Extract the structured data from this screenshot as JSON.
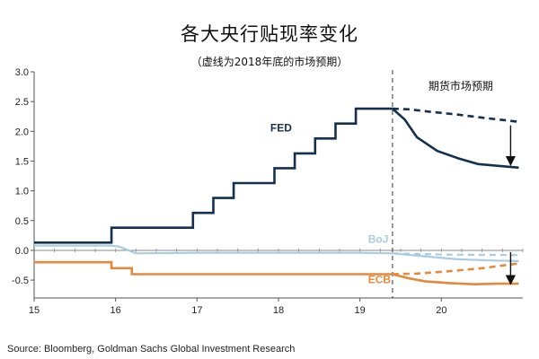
{
  "title": "各大央行贴现率变化",
  "subtitle": "（虚线为2018年底的市场预期）",
  "source": "Source: Bloomberg, Goldman Sachs Global Investment Research",
  "chart_data": {
    "type": "line",
    "xlabel": "",
    "ylabel": "",
    "xlim": [
      15,
      21
    ],
    "ylim": [
      -0.8,
      3.0
    ],
    "yticks": [
      -0.5,
      0.0,
      0.5,
      1.0,
      1.5,
      2.0,
      2.5,
      3.0
    ],
    "ytick_labels": [
      "-0.5",
      "0.0",
      "0.5",
      "1.0",
      "1.5",
      "2.0",
      "2.5",
      "3.0"
    ],
    "xticks": [
      15,
      16,
      17,
      18,
      19,
      20
    ],
    "xtick_labels": [
      "15",
      "16",
      "17",
      "18",
      "19",
      "20"
    ],
    "divider_x": 19.4,
    "divider_label": "期货市场预期",
    "series": [
      {
        "name": "FED",
        "color": "#14304f",
        "style": "step",
        "values": [
          [
            15.0,
            0.13
          ],
          [
            15.95,
            0.13
          ],
          [
            15.95,
            0.38
          ],
          [
            16.95,
            0.38
          ],
          [
            16.95,
            0.63
          ],
          [
            17.2,
            0.63
          ],
          [
            17.2,
            0.88
          ],
          [
            17.45,
            0.88
          ],
          [
            17.45,
            1.13
          ],
          [
            17.95,
            1.13
          ],
          [
            17.95,
            1.38
          ],
          [
            18.2,
            1.38
          ],
          [
            18.2,
            1.63
          ],
          [
            18.45,
            1.63
          ],
          [
            18.45,
            1.88
          ],
          [
            18.7,
            1.88
          ],
          [
            18.7,
            2.13
          ],
          [
            18.95,
            2.13
          ],
          [
            18.95,
            2.38
          ],
          [
            19.4,
            2.38
          ]
        ]
      },
      {
        "name": "FED",
        "color": "#14304f",
        "style": "solid",
        "values": [
          [
            19.4,
            2.38
          ],
          [
            19.55,
            2.2
          ],
          [
            19.7,
            1.9
          ],
          [
            19.95,
            1.67
          ],
          [
            20.2,
            1.55
          ],
          [
            20.45,
            1.45
          ],
          [
            20.7,
            1.42
          ],
          [
            20.95,
            1.39
          ]
        ]
      },
      {
        "name": "FED",
        "color": "#14304f",
        "style": "dashed",
        "values": [
          [
            19.4,
            2.38
          ],
          [
            19.6,
            2.37
          ],
          [
            19.85,
            2.33
          ],
          [
            20.2,
            2.28
          ],
          [
            20.5,
            2.23
          ],
          [
            20.95,
            2.16
          ]
        ]
      },
      {
        "name": "BoJ",
        "color": "#a9cbe3",
        "style": "solid",
        "values": [
          [
            15.0,
            0.08
          ],
          [
            15.95,
            0.08
          ],
          [
            16.05,
            0.06
          ],
          [
            16.25,
            -0.05
          ],
          [
            17.0,
            -0.04
          ],
          [
            18.0,
            -0.04
          ],
          [
            19.0,
            -0.04
          ],
          [
            19.4,
            -0.05
          ],
          [
            19.8,
            -0.1
          ],
          [
            20.2,
            -0.15
          ],
          [
            20.6,
            -0.17
          ],
          [
            20.95,
            -0.18
          ]
        ]
      },
      {
        "name": "BoJ",
        "color": "#a9cbe3",
        "style": "dashed",
        "values": [
          [
            19.4,
            -0.05
          ],
          [
            20.0,
            -0.07
          ],
          [
            20.95,
            -0.08
          ]
        ]
      },
      {
        "name": "ECB",
        "color": "#e3893c",
        "style": "step",
        "values": [
          [
            15.0,
            -0.2
          ],
          [
            15.95,
            -0.2
          ],
          [
            15.95,
            -0.3
          ],
          [
            16.2,
            -0.3
          ],
          [
            16.2,
            -0.4
          ],
          [
            19.4,
            -0.4
          ]
        ]
      },
      {
        "name": "ECB",
        "color": "#e3893c",
        "style": "solid",
        "values": [
          [
            19.4,
            -0.4
          ],
          [
            19.6,
            -0.47
          ],
          [
            19.8,
            -0.52
          ],
          [
            20.1,
            -0.55
          ],
          [
            20.4,
            -0.57
          ],
          [
            20.7,
            -0.56
          ],
          [
            20.95,
            -0.56
          ]
        ]
      },
      {
        "name": "ECB",
        "color": "#e3893c",
        "style": "dashed",
        "values": [
          [
            19.4,
            -0.4
          ],
          [
            19.7,
            -0.39
          ],
          [
            20.1,
            -0.35
          ],
          [
            20.5,
            -0.3
          ],
          [
            20.95,
            -0.22
          ]
        ]
      }
    ],
    "annotations": [
      {
        "text": "FED",
        "x": 17.9,
        "y": 2.0,
        "color": "#14304f"
      },
      {
        "text": "BoJ",
        "x": 19.1,
        "y": 0.13,
        "color": "#a9cbe3"
      },
      {
        "text": "ECB",
        "x": 19.1,
        "y": -0.55,
        "color": "#e3893c"
      }
    ],
    "arrows": [
      {
        "x": 20.85,
        "y_from": 2.1,
        "y_to": 1.5,
        "color": "#111111"
      },
      {
        "x": 20.85,
        "y_from": -0.03,
        "y_to": -0.5,
        "color": "#111111"
      }
    ]
  }
}
